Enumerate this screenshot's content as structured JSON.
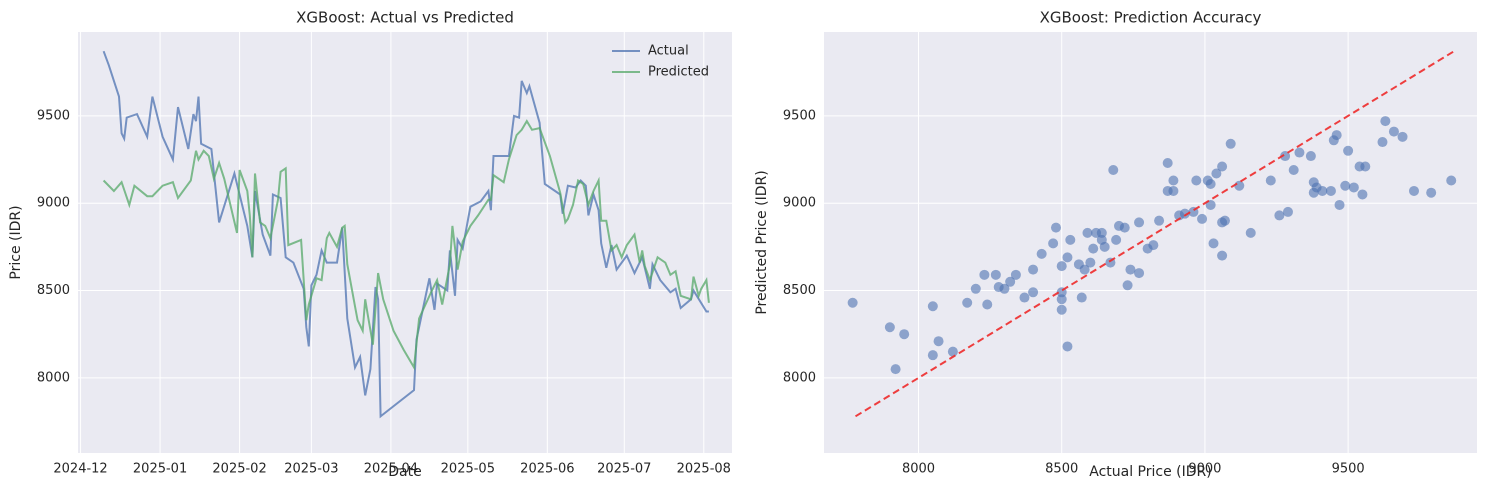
{
  "chart_data": [
    {
      "type": "line",
      "title": "XGBoost: Actual vs Predicted",
      "xlabel": "Date",
      "ylabel": "Price (IDR)",
      "xlim": [
        -1,
        254
      ],
      "ylim": [
        7570,
        9980
      ],
      "xticks": [
        {
          "value": 0,
          "label": "2024-12"
        },
        {
          "value": 31,
          "label": "2025-01"
        },
        {
          "value": 62,
          "label": "2025-02"
        },
        {
          "value": 90,
          "label": "2025-03"
        },
        {
          "value": 121,
          "label": "2025-04"
        },
        {
          "value": 151,
          "label": "2025-05"
        },
        {
          "value": 182,
          "label": "2025-06"
        },
        {
          "value": 212,
          "label": "2025-07"
        },
        {
          "value": 243,
          "label": "2025-08"
        }
      ],
      "yticks": [
        8000,
        8500,
        9000,
        9500
      ],
      "grid": true,
      "legend": "upper right",
      "series": [
        {
          "name": "Actual",
          "color": "#4c72b0",
          "x": [
            9,
            11,
            15,
            16,
            17,
            18,
            22,
            26,
            28,
            32,
            36,
            38,
            42,
            44,
            45,
            46,
            47,
            51,
            54,
            60,
            65,
            67,
            68,
            71,
            74,
            75,
            78,
            80,
            83,
            87,
            88,
            89,
            90,
            92,
            94,
            96,
            100,
            102,
            104,
            107,
            109,
            111,
            113,
            115,
            116,
            117,
            130,
            131,
            135,
            136,
            138,
            139,
            143,
            144,
            146,
            147,
            149,
            151,
            152,
            156,
            159,
            160,
            161,
            167,
            169,
            171,
            172,
            174,
            175,
            179,
            181,
            187,
            188,
            190,
            193,
            195,
            197,
            198,
            200,
            202,
            203,
            205,
            207,
            209,
            213,
            216,
            219,
            222,
            223,
            226,
            230,
            232,
            234,
            238,
            239,
            244,
            245
          ],
          "values": [
            9870,
            9790,
            9610,
            9400,
            9370,
            9490,
            9510,
            9380,
            9610,
            9380,
            9250,
            9550,
            9310,
            9510,
            9470,
            9610,
            9340,
            9310,
            8890,
            9170,
            8870,
            8690,
            9070,
            8820,
            8700,
            9050,
            9030,
            8690,
            8660,
            8510,
            8290,
            8180,
            8530,
            8590,
            8730,
            8660,
            8660,
            8860,
            8340,
            8060,
            8120,
            7900,
            8050,
            8520,
            8450,
            7780,
            7930,
            8220,
            8500,
            8570,
            8390,
            8540,
            8500,
            8730,
            8470,
            8790,
            8740,
            8900,
            8980,
            9010,
            9070,
            8960,
            9270,
            9270,
            9500,
            9490,
            9700,
            9630,
            9670,
            9460,
            9110,
            9050,
            8940,
            9100,
            9090,
            9130,
            9100,
            8930,
            9050,
            8960,
            8770,
            8630,
            8760,
            8620,
            8700,
            8600,
            8690,
            8510,
            8650,
            8560,
            8490,
            8510,
            8400,
            8450,
            8500,
            8380,
            8380
          ]
        },
        {
          "name": "Predicted",
          "color": "#55a868",
          "x": [
            9,
            13,
            16,
            19,
            21,
            26,
            28,
            32,
            36,
            38,
            43,
            45,
            46,
            48,
            50,
            52,
            54,
            56,
            61,
            62,
            65,
            66,
            67,
            68,
            70,
            72,
            74,
            77,
            78,
            80,
            81,
            86,
            88,
            89,
            92,
            94,
            96,
            97,
            100,
            102,
            103,
            104,
            107,
            108,
            110,
            111,
            112,
            114,
            116,
            118,
            122,
            126,
            130,
            132,
            137,
            139,
            141,
            144,
            145,
            147,
            149,
            152,
            155,
            159,
            160,
            161,
            165,
            167,
            170,
            172,
            174,
            176,
            179,
            183,
            187,
            189,
            190,
            192,
            194,
            196,
            198,
            200,
            202,
            203,
            205,
            207,
            209,
            211,
            213,
            216,
            218,
            219,
            220,
            222,
            225,
            228,
            230,
            232,
            234,
            238,
            239,
            241,
            242,
            244,
            245
          ],
          "values": [
            9130,
            9070,
            9120,
            8990,
            9100,
            9040,
            9040,
            9100,
            9120,
            9030,
            9130,
            9300,
            9250,
            9300,
            9270,
            9140,
            9230,
            9140,
            8830,
            9190,
            9070,
            8930,
            8690,
            9170,
            8890,
            8870,
            8800,
            9020,
            9180,
            9200,
            8760,
            8790,
            8330,
            8420,
            8570,
            8560,
            8800,
            8830,
            8750,
            8860,
            8870,
            8650,
            8410,
            8330,
            8270,
            8450,
            8360,
            8190,
            8600,
            8450,
            8270,
            8160,
            8060,
            8340,
            8500,
            8560,
            8420,
            8650,
            8870,
            8620,
            8780,
            8870,
            8930,
            9020,
            9020,
            9160,
            9120,
            9250,
            9390,
            9420,
            9470,
            9420,
            9430,
            9270,
            9060,
            8890,
            8910,
            8990,
            9130,
            9110,
            8990,
            9070,
            9130,
            8900,
            8900,
            8730,
            8760,
            8690,
            8760,
            8820,
            8660,
            8730,
            8640,
            8560,
            8690,
            8660,
            8590,
            8610,
            8470,
            8450,
            8580,
            8470,
            8510,
            8560,
            8430
          ]
        }
      ]
    },
    {
      "type": "scatter",
      "title": "XGBoost: Prediction Accuracy",
      "xlabel": "Actual Price (IDR)",
      "ylabel": "Predicted Price (IDR)",
      "xlim": [
        7670,
        9950
      ],
      "ylim": [
        7570,
        9980
      ],
      "xticks": [
        8000,
        8500,
        9000,
        9500
      ],
      "yticks": [
        8000,
        8500,
        9000,
        9500
      ],
      "grid": true,
      "color": "#4c72b0",
      "diagonal": {
        "values": [
          7780,
          9870
        ],
        "color": "#ee2a2a"
      },
      "x": [
        7770,
        7900,
        7920,
        7950,
        8050,
        8050,
        8070,
        8120,
        8170,
        8200,
        8230,
        8240,
        8270,
        8280,
        8300,
        8320,
        8340,
        8370,
        8400,
        8400,
        8430,
        8470,
        8480,
        8500,
        8500,
        8500,
        8500,
        8520,
        8520,
        8530,
        8560,
        8570,
        8580,
        8590,
        8600,
        8610,
        8620,
        8640,
        8640,
        8650,
        8670,
        8680,
        8690,
        8700,
        8720,
        8730,
        8740,
        8770,
        8770,
        8800,
        8820,
        8840,
        8870,
        8870,
        8890,
        8890,
        8910,
        8930,
        8960,
        8970,
        8990,
        9010,
        9020,
        9020,
        9030,
        9040,
        9060,
        9060,
        9060,
        9070,
        9090,
        9120,
        9160,
        9230,
        9260,
        9280,
        9290,
        9310,
        9330,
        9380,
        9380,
        9390,
        9410,
        9440,
        9450,
        9460,
        9470,
        9490,
        9500,
        9520,
        9540,
        9550,
        9560,
        9620,
        9630,
        9660,
        9690,
        9730,
        9790,
        9860,
        9370
      ],
      "y": [
        8430,
        8290,
        8050,
        8250,
        8130,
        8410,
        8210,
        8150,
        8430,
        8510,
        8590,
        8420,
        8590,
        8520,
        8510,
        8550,
        8590,
        8460,
        8490,
        8620,
        8710,
        8770,
        8860,
        8640,
        8450,
        8390,
        8490,
        8180,
        8690,
        8790,
        8650,
        8460,
        8620,
        8830,
        8660,
        8740,
        8830,
        8790,
        8830,
        8750,
        8660,
        9190,
        8790,
        8870,
        8860,
        8530,
        8620,
        8600,
        8890,
        8740,
        8760,
        8900,
        9070,
        9230,
        9130,
        9070,
        8930,
        8940,
        8950,
        9130,
        8910,
        9130,
        9110,
        8990,
        8770,
        9170,
        9210,
        8890,
        8700,
        8900,
        9340,
        9100,
        8830,
        9130,
        8930,
        9270,
        8950,
        9190,
        9290,
        9120,
        9060,
        9090,
        9070,
        9070,
        9360,
        9390,
        8990,
        9100,
        9300,
        9090,
        9210,
        9050,
        9210,
        9350,
        9470,
        9410,
        9380,
        9070,
        9060,
        9130,
        9270
      ]
    }
  ]
}
